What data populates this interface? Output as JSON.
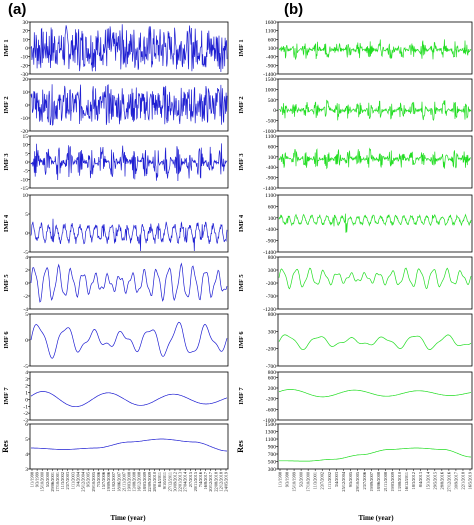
{
  "panel_labels": [
    "(a)",
    "(b)"
  ],
  "x_axis_title": "Time (year)",
  "chart_data": [
    {
      "panel": "(a)",
      "type": "line",
      "line_color": "#1f1fd2",
      "x_tick_labels": [
        "1/1/1998",
        "9/3/1999",
        "15/10/2000",
        "5/2/2000",
        "29/06/2001",
        "17/10/2001",
        "11/3/2002",
        "23/7/2003",
        "1/11/2003",
        "3/4/2004",
        "25/12/2004",
        "9/5/2005",
        "29/10/2005",
        "7/3/2006",
        "15/7/2006",
        "19/09/2006",
        "11/02/2007",
        "18/06/2007",
        "21/11/2007",
        "19/03/2008",
        "13/08/2008",
        "16/12/2008",
        "18/03/2009",
        "22/09/2009",
        "28/01/2010",
        "8/4/2011",
        "9/10/2011",
        "27/12/2011",
        "30/09/2012",
        "22/01/2013",
        "27/04/2014",
        "2/7/2015",
        "20/11/2015",
        "7/4/2016",
        "16/8/2017",
        "20/12/2017",
        "22/08/2018",
        "12/12/2018",
        "24/05/2019"
      ],
      "subplots": [
        {
          "label": "IMF 1",
          "ylim": [
            -30,
            30
          ],
          "yticks": [
            -30,
            -20,
            -10,
            0,
            10,
            20,
            30
          ],
          "pattern": "noise",
          "amplitude": 28
        },
        {
          "label": "IMF 2",
          "ylim": [
            -20,
            20
          ],
          "yticks": [
            -20,
            -10,
            0,
            10,
            20
          ],
          "pattern": "noise",
          "amplitude": 16
        },
        {
          "label": "IMF 3",
          "ylim": [
            -15,
            15
          ],
          "yticks": [
            -15,
            -10,
            -5,
            0,
            5,
            10,
            15
          ],
          "pattern": "bursts",
          "amplitude": 11
        },
        {
          "label": "IMF 4",
          "ylim": [
            -5,
            10
          ],
          "yticks": [
            -5,
            0,
            5,
            10
          ],
          "pattern": "spiky",
          "amplitude": 6
        },
        {
          "label": "IMF 5",
          "ylim": [
            -4,
            4
          ],
          "yticks": [
            -4,
            -2,
            0,
            2,
            4
          ],
          "pattern": "wave",
          "amplitude": 2.5,
          "cycles": 16
        },
        {
          "label": "IMF 6",
          "ylim": [
            -5,
            5
          ],
          "yticks": [
            -5,
            0,
            5
          ],
          "pattern": "wave",
          "amplitude": 3,
          "cycles": 7
        },
        {
          "label": "IMF 7",
          "ylim": [
            -3,
            4
          ],
          "yticks": [
            -3,
            -2,
            -1,
            0,
            1,
            2,
            3,
            4
          ],
          "pattern": "slow",
          "amplitude": 1.2
        },
        {
          "label": "Res",
          "ylim": [
            3,
            6
          ],
          "yticks": [
            3,
            4,
            5,
            6
          ],
          "pattern": "trend",
          "values": [
            4.4,
            4.3,
            4.4,
            4.8,
            5.0,
            4.8,
            4.2
          ]
        }
      ]
    },
    {
      "panel": "(b)",
      "type": "line",
      "line_color": "#22dd22",
      "x_tick_labels": [
        "1/1/1998",
        "9/3/1998",
        "15/10/1999",
        "5/2/2000",
        "17/10/2000",
        "11/3/2001",
        "23/7/2002",
        "1/11/2002",
        "3/4/2003",
        "25/12/2004",
        "9/5/2005",
        "29/10/2005",
        "23/7/2006",
        "19/09/2007",
        "18/06/2008",
        "21/11/2008",
        "19/03/2009",
        "13/08/2010",
        "16/12/2011",
        "18/3/2012",
        "8/4/2013",
        "15/1/2014",
        "29/5/2015",
        "28/8/2016",
        "27/12/2016",
        "30/9/2017",
        "22/1/2018",
        "16/5/2019"
      ],
      "subplots": [
        {
          "label": "IMF 1",
          "ylim": [
            -1400,
            1600
          ],
          "yticks": [
            -1400,
            -900,
            -400,
            100,
            600,
            1100,
            1600
          ],
          "pattern": "bursts",
          "amplitude": 600
        },
        {
          "label": "IMF 2",
          "ylim": [
            -1000,
            1500
          ],
          "yticks": [
            -1000,
            -500,
            0,
            500,
            1000,
            1500
          ],
          "pattern": "bursts",
          "amplitude": 500
        },
        {
          "label": "IMF 3",
          "ylim": [
            -1400,
            1100
          ],
          "yticks": [
            -1400,
            -900,
            -400,
            100,
            600,
            1100
          ],
          "pattern": "bursts",
          "amplitude": 500
        },
        {
          "label": "IMF 4",
          "ylim": [
            -1400,
            1100
          ],
          "yticks": [
            -1400,
            -900,
            -400,
            100,
            600,
            1100
          ],
          "pattern": "spiky",
          "amplitude": 500
        },
        {
          "label": "IMF 5",
          "ylim": [
            -1200,
            800
          ],
          "yticks": [
            -1200,
            -700,
            -200,
            300,
            800
          ],
          "pattern": "wave",
          "amplitude": 350,
          "cycles": 14
        },
        {
          "label": "IMF 6",
          "ylim": [
            -700,
            800
          ],
          "yticks": [
            -700,
            -200,
            300,
            800
          ],
          "pattern": "wave",
          "amplitude": 200,
          "cycles": 6
        },
        {
          "label": "IMF 7",
          "ylim": [
            -1000,
            800
          ],
          "yticks": [
            -1000,
            -600,
            -200,
            200,
            600,
            800
          ],
          "pattern": "slow",
          "amplitude": 150
        },
        {
          "label": "Res",
          "ylim": [
            300,
            1500
          ],
          "yticks": [
            300,
            500,
            700,
            900,
            1100,
            1300,
            1500
          ],
          "pattern": "trend",
          "values": [
            520,
            510,
            560,
            680,
            820,
            860,
            820,
            620
          ]
        }
      ]
    }
  ]
}
